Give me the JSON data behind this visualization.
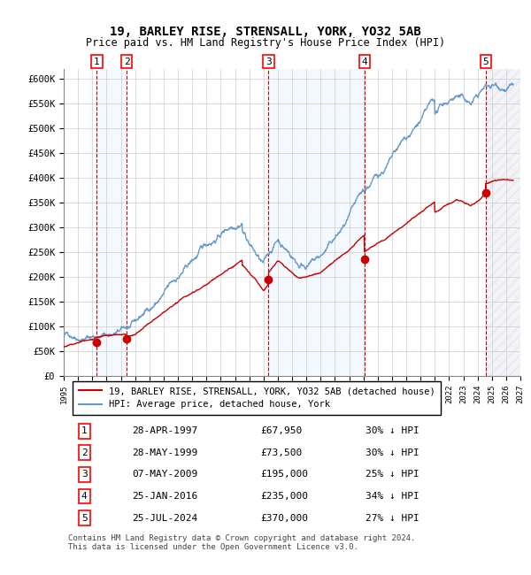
{
  "title1": "19, BARLEY RISE, STRENSALL, YORK, YO32 5AB",
  "title2": "Price paid vs. HM Land Registry's House Price Index (HPI)",
  "ylabel_ticks": [
    "£0",
    "£50K",
    "£100K",
    "£150K",
    "£200K",
    "£250K",
    "£300K",
    "£350K",
    "£400K",
    "£450K",
    "£500K",
    "£550K",
    "£600K"
  ],
  "ytick_values": [
    0,
    50000,
    100000,
    150000,
    200000,
    250000,
    300000,
    350000,
    400000,
    450000,
    500000,
    550000,
    600000
  ],
  "xlim": [
    1995,
    2027
  ],
  "ylim": [
    0,
    620000
  ],
  "sale_dates_x": [
    1997.32,
    1999.41,
    2009.35,
    2016.07,
    2024.56
  ],
  "sale_prices_y": [
    67950,
    73500,
    195000,
    235000,
    370000
  ],
  "sale_labels": [
    "1",
    "2",
    "3",
    "4",
    "5"
  ],
  "legend_line1": "19, BARLEY RISE, STRENSALL, YORK, YO32 5AB (detached house)",
  "legend_line2": "HPI: Average price, detached house, York",
  "table_rows": [
    [
      "1",
      "28-APR-1997",
      "£67,950",
      "30% ↓ HPI"
    ],
    [
      "2",
      "28-MAY-1999",
      "£73,500",
      "30% ↓ HPI"
    ],
    [
      "3",
      "07-MAY-2009",
      "£195,000",
      "25% ↓ HPI"
    ],
    [
      "4",
      "25-JAN-2016",
      "£235,000",
      "34% ↓ HPI"
    ],
    [
      "5",
      "25-JUL-2024",
      "£370,000",
      "27% ↓ HPI"
    ]
  ],
  "footnote": "Contains HM Land Registry data © Crown copyright and database right 2024.\nThis data is licensed under the Open Government Licence v3.0.",
  "background_color": "#ffffff",
  "plot_bg": "#ffffff",
  "grid_color": "#cccccc",
  "hpi_line_color": "#6699cc",
  "sale_line_color": "#cc0000",
  "sale_marker_color": "#cc0000",
  "vline_color": "#cc0000",
  "shade_color": "#ddeeff",
  "hatch_color": "#aaaacc"
}
